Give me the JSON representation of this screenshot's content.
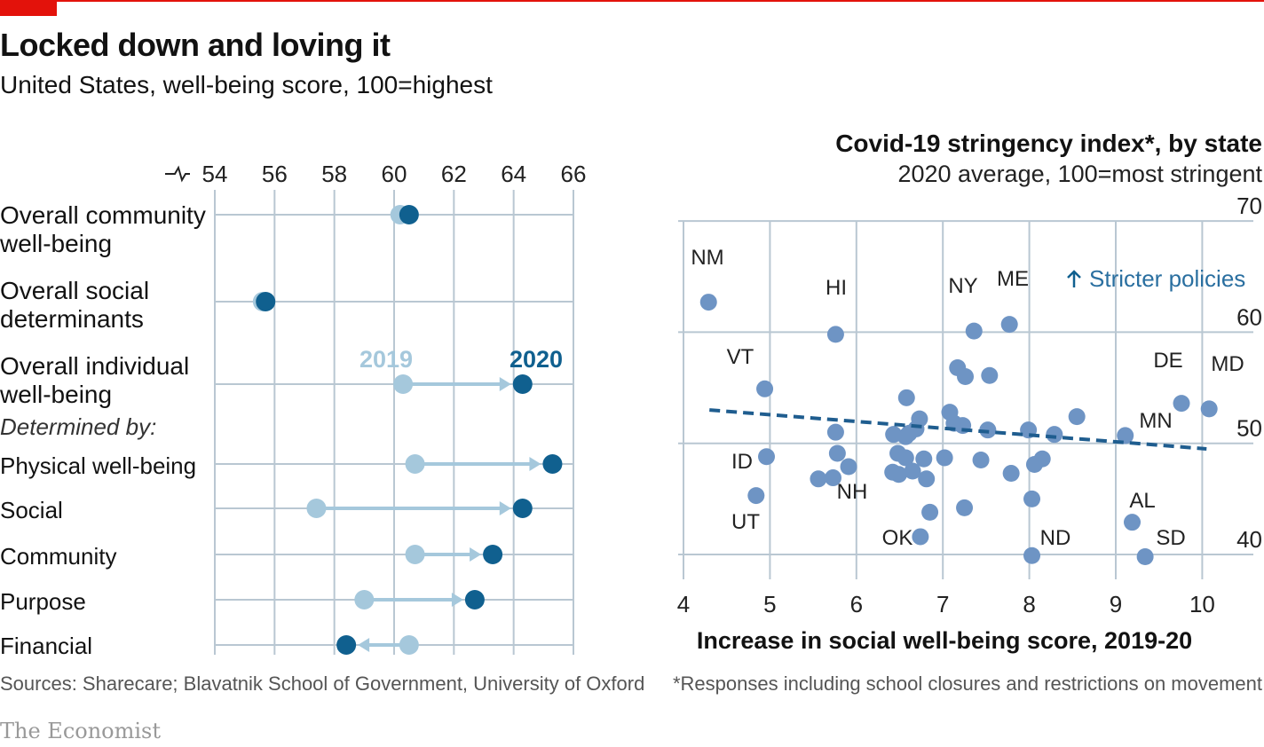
{
  "header": {
    "title": "Locked down and loving it",
    "subtitle": "United States, well-being score, 100=highest"
  },
  "footer": {
    "sources": "Sources: Sharecare; Blavatnik School of Government, University of Oxford",
    "note": "*Responses including school closures and restrictions on movement",
    "brand": "The Economist"
  },
  "colors": {
    "accent_red": "#e3120b",
    "color_2019": "#a5c8dc",
    "color_2020": "#10608f",
    "scatter_point": "#6e94c4",
    "trend_line": "#1f5d8f",
    "grid": "#b9c7d2"
  },
  "chart_data": [
    {
      "type": "dot-arrow",
      "axis_break_icon": "axis-break-icon",
      "xlim": [
        54,
        66
      ],
      "xticks": [
        "54",
        "56",
        "58",
        "60",
        "62",
        "64",
        "66"
      ],
      "legend": {
        "from": "2019",
        "to": "2020"
      },
      "annotation": "Determined by:",
      "rows": [
        {
          "label_lines": [
            "Overall community",
            "well-being"
          ],
          "v2019": 60.2,
          "v2020": 60.5
        },
        {
          "label_lines": [
            "Overall social",
            "determinants"
          ],
          "v2019": 55.6,
          "v2020": 55.7
        },
        {
          "label_lines": [
            "Overall individual",
            "well-being"
          ],
          "v2019": 60.3,
          "v2020": 64.3
        },
        {
          "label_lines": [
            "Physical well-being"
          ],
          "v2019": 60.7,
          "v2020": 65.3
        },
        {
          "label_lines": [
            "Social"
          ],
          "v2019": 57.4,
          "v2020": 64.3
        },
        {
          "label_lines": [
            "Community"
          ],
          "v2019": 60.7,
          "v2020": 63.3
        },
        {
          "label_lines": [
            "Purpose"
          ],
          "v2019": 59.0,
          "v2020": 62.7
        },
        {
          "label_lines": [
            "Financial"
          ],
          "v2019": 60.5,
          "v2020": 58.4
        }
      ]
    },
    {
      "type": "scatter",
      "title": "Covid-19 stringency index*, by state",
      "subtitle": "2020 average, 100=most stringent",
      "xlabel": "Increase in social well-being score, 2019-20",
      "xlim": [
        3.98,
        10.4
      ],
      "ylim": [
        38,
        70
      ],
      "xticks": [
        "4",
        "5",
        "6",
        "7",
        "8",
        "9",
        "10"
      ],
      "yticks": [
        "40",
        "50",
        "60",
        "70"
      ],
      "policy_note": "Stricter policies",
      "trendline": {
        "x": [
          4.3,
          10.05
        ],
        "y": [
          53.0,
          49.5
        ]
      },
      "labeled": [
        {
          "label": "NM",
          "x": 4.29,
          "y": 62.7
        },
        {
          "label": "HI",
          "x": 5.76,
          "y": 59.8
        },
        {
          "label": "NY",
          "x": 7.36,
          "y": 60.1
        },
        {
          "label": "ME",
          "x": 7.77,
          "y": 60.7
        },
        {
          "label": "VT",
          "x": 4.94,
          "y": 54.9
        },
        {
          "label": "DE",
          "x": 9.76,
          "y": 53.6
        },
        {
          "label": "MD",
          "x": 10.08,
          "y": 53.1
        },
        {
          "label": "MN",
          "x": 9.11,
          "y": 50.7
        },
        {
          "label": "ID",
          "x": 4.96,
          "y": 48.8
        },
        {
          "label": "NH",
          "x": 5.73,
          "y": 46.9
        },
        {
          "label": "UT",
          "x": 4.84,
          "y": 45.3
        },
        {
          "label": "AL",
          "x": 9.19,
          "y": 42.9
        },
        {
          "label": "OK",
          "x": 6.74,
          "y": 41.6
        },
        {
          "label": "ND",
          "x": 8.03,
          "y": 39.9
        },
        {
          "label": "SD",
          "x": 9.34,
          "y": 39.8
        }
      ],
      "points": [
        [
          7.17,
          56.8
        ],
        [
          7.26,
          56.0
        ],
        [
          7.54,
          56.1
        ],
        [
          6.58,
          54.1
        ],
        [
          6.73,
          52.2
        ],
        [
          7.08,
          52.8
        ],
        [
          7.13,
          51.8
        ],
        [
          7.23,
          51.6
        ],
        [
          7.52,
          51.2
        ],
        [
          6.69,
          51.3
        ],
        [
          6.61,
          50.9
        ],
        [
          6.57,
          50.6
        ],
        [
          6.43,
          50.8
        ],
        [
          5.76,
          51.0
        ],
        [
          7.99,
          51.2
        ],
        [
          8.29,
          50.8
        ],
        [
          8.55,
          52.4
        ],
        [
          6.48,
          49.1
        ],
        [
          5.78,
          49.1
        ],
        [
          5.91,
          47.9
        ],
        [
          6.57,
          48.7
        ],
        [
          6.78,
          48.6
        ],
        [
          7.02,
          48.7
        ],
        [
          7.44,
          48.5
        ],
        [
          8.15,
          48.6
        ],
        [
          8.06,
          48.1
        ],
        [
          6.65,
          47.5
        ],
        [
          6.49,
          47.2
        ],
        [
          6.42,
          47.4
        ],
        [
          6.81,
          46.8
        ],
        [
          7.79,
          47.3
        ],
        [
          5.56,
          46.8
        ],
        [
          6.85,
          43.8
        ],
        [
          7.25,
          44.2
        ],
        [
          8.03,
          45.0
        ]
      ]
    }
  ]
}
